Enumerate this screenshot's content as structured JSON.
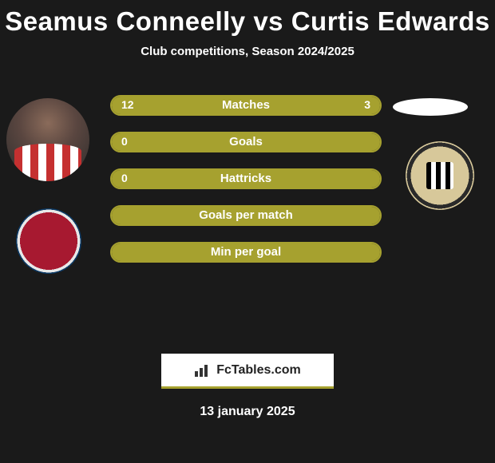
{
  "title": "Seamus Conneelly vs Curtis Edwards",
  "subtitle": "Club competitions, Season 2024/2025",
  "date": "13 january 2025",
  "logo_text": "FcTables.com",
  "colors": {
    "background": "#1a1a1a",
    "bar_fill": "#a6a12f",
    "bar_border": "#a6a12f",
    "text": "#ffffff",
    "logo_border": "#a6a12f"
  },
  "bars": [
    {
      "label": "Matches",
      "left": "12",
      "right": "3",
      "left_pct": 80,
      "right_pct": 20
    },
    {
      "label": "Goals",
      "left": "0",
      "right": "",
      "left_pct": 100,
      "right_pct": 0
    },
    {
      "label": "Hattricks",
      "left": "0",
      "right": "",
      "left_pct": 100,
      "right_pct": 0
    },
    {
      "label": "Goals per match",
      "left": "",
      "right": "",
      "left_pct": 100,
      "right_pct": 0
    },
    {
      "label": "Min per goal",
      "left": "",
      "right": "",
      "left_pct": 100,
      "right_pct": 0
    }
  ]
}
